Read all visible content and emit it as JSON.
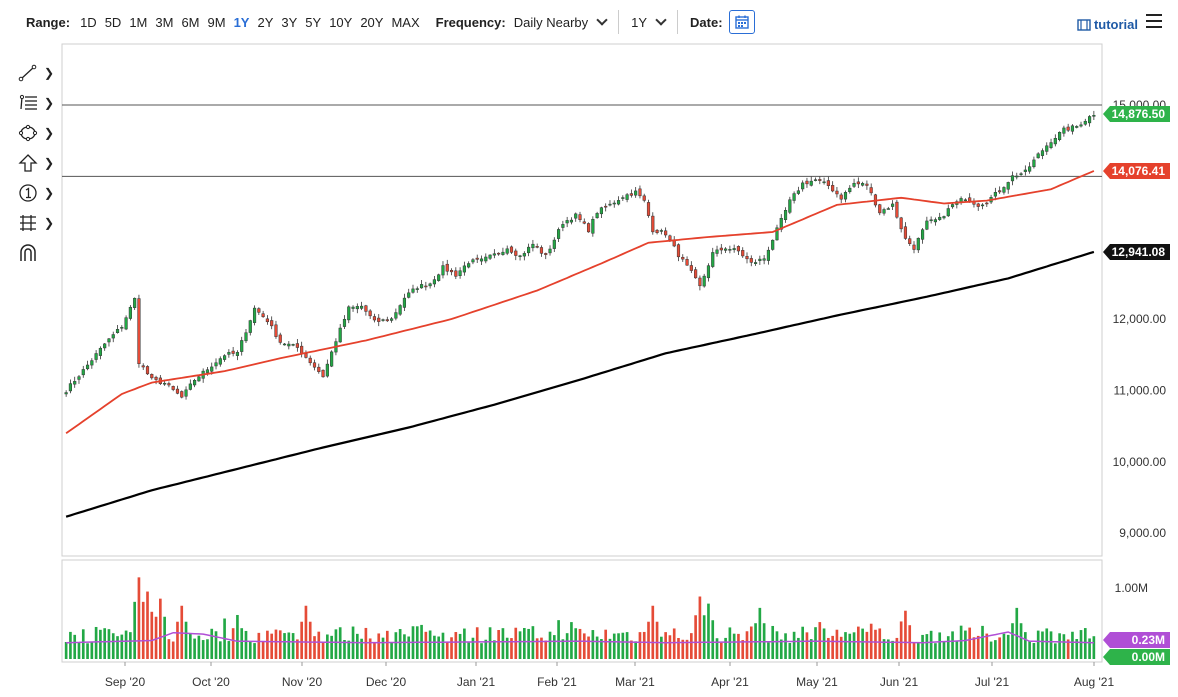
{
  "toolbar": {
    "range_label": "Range:",
    "ranges": [
      "1D",
      "5D",
      "1M",
      "3M",
      "6M",
      "9M",
      "1Y",
      "2Y",
      "3Y",
      "5Y",
      "10Y",
      "20Y",
      "MAX"
    ],
    "active_range": "1Y",
    "frequency_label": "Frequency:",
    "frequency_value": "Daily Nearby",
    "period_value": "1Y",
    "date_label": "Date:",
    "tutorial_label": "tutorial"
  },
  "drawing_tools": [
    "line-tool-icon",
    "fib-tool-icon",
    "shape-tool-icon",
    "arrow-up-tool-icon",
    "number-marker-tool-icon",
    "measure-tool-icon",
    "magnet-tool-icon"
  ],
  "colors": {
    "up": "#22a845",
    "down": "#e54b37",
    "ma50": "#e5412c",
    "ma200": "#000000",
    "price_badge": "#2eb34a",
    "ma50_badge": "#e5412c",
    "ma200_badge": "#111111",
    "vol_ma": "#b04fd6",
    "accent": "#2a6ed6"
  },
  "chart_data": {
    "type": "candlestick",
    "x_axis_labels": [
      "Sep '20",
      "Oct '20",
      "Nov '20",
      "Dec '20",
      "Jan '21",
      "Feb '21",
      "Mar '21",
      "Apr '21",
      "May '21",
      "Jun '21",
      "Jul '21",
      "Aug '21"
    ],
    "price_axis_labels": [
      "15,000.00",
      "12,000.00",
      "11,000.00",
      "10,000.00",
      "9,000.00"
    ],
    "price_ylim": [
      8800,
      15150
    ],
    "horizontal_lines": [
      15000,
      14000
    ],
    "last_price": "14,876.50",
    "ma50_value": "14,076.41",
    "ma200_value": "12,941.08",
    "close_path": [
      [
        0,
        11000
      ],
      [
        4,
        11280
      ],
      [
        9,
        11650
      ],
      [
        13,
        11900
      ],
      [
        16,
        12280
      ],
      [
        17,
        11400
      ],
      [
        20,
        11150
      ],
      [
        23,
        11100
      ],
      [
        27,
        10900
      ],
      [
        30,
        11150
      ],
      [
        33,
        11300
      ],
      [
        37,
        11500
      ],
      [
        40,
        11520
      ],
      [
        44,
        12150
      ],
      [
        47,
        11980
      ],
      [
        50,
        11680
      ],
      [
        54,
        11600
      ],
      [
        57,
        11400
      ],
      [
        60,
        11200
      ],
      [
        63,
        11700
      ],
      [
        66,
        12150
      ],
      [
        69,
        12180
      ],
      [
        72,
        11960
      ],
      [
        76,
        12000
      ],
      [
        79,
        12300
      ],
      [
        82,
        12450
      ],
      [
        85,
        12500
      ],
      [
        88,
        12720
      ],
      [
        91,
        12620
      ],
      [
        94,
        12800
      ],
      [
        97,
        12820
      ],
      [
        100,
        12900
      ],
      [
        103,
        13000
      ],
      [
        106,
        12880
      ],
      [
        109,
        13050
      ],
      [
        112,
        12880
      ],
      [
        116,
        13350
      ],
      [
        119,
        13450
      ],
      [
        122,
        13250
      ],
      [
        124,
        13500
      ],
      [
        127,
        13600
      ],
      [
        130,
        13720
      ],
      [
        133,
        13780
      ],
      [
        135,
        13650
      ],
      [
        137,
        13250
      ],
      [
        140,
        13200
      ],
      [
        143,
        12900
      ],
      [
        146,
        12650
      ],
      [
        148,
        12450
      ],
      [
        151,
        12920
      ],
      [
        154,
        13000
      ],
      [
        157,
        12950
      ],
      [
        160,
        12780
      ],
      [
        163,
        12850
      ],
      [
        166,
        13250
      ],
      [
        169,
        13650
      ],
      [
        172,
        13900
      ],
      [
        175,
        13950
      ],
      [
        178,
        13870
      ],
      [
        181,
        13700
      ],
      [
        184,
        13900
      ],
      [
        187,
        13880
      ],
      [
        190,
        13500
      ],
      [
        193,
        13600
      ],
      [
        196,
        13120
      ],
      [
        198,
        13000
      ],
      [
        201,
        13350
      ],
      [
        204,
        13400
      ],
      [
        207,
        13600
      ],
      [
        210,
        13700
      ],
      [
        213,
        13600
      ],
      [
        215,
        13650
      ],
      [
        218,
        13800
      ],
      [
        221,
        14000
      ],
      [
        224,
        14060
      ],
      [
        227,
        14300
      ],
      [
        230,
        14500
      ],
      [
        233,
        14650
      ],
      [
        236,
        14700
      ],
      [
        238,
        14790
      ],
      [
        240,
        14876
      ]
    ],
    "ma50_path": [
      [
        0,
        10400
      ],
      [
        13,
        10950
      ],
      [
        20,
        11110
      ],
      [
        37,
        11270
      ],
      [
        50,
        11450
      ],
      [
        70,
        11700
      ],
      [
        90,
        12000
      ],
      [
        110,
        12400
      ],
      [
        125,
        12780
      ],
      [
        136,
        13070
      ],
      [
        150,
        13150
      ],
      [
        165,
        13220
      ],
      [
        180,
        13600
      ],
      [
        195,
        13700
      ],
      [
        205,
        13620
      ],
      [
        215,
        13660
      ],
      [
        230,
        13820
      ],
      [
        240,
        14076
      ]
    ],
    "ma200_path": [
      [
        0,
        9230
      ],
      [
        20,
        9600
      ],
      [
        40,
        9900
      ],
      [
        60,
        10200
      ],
      [
        80,
        10480
      ],
      [
        100,
        10800
      ],
      [
        120,
        11150
      ],
      [
        140,
        11520
      ],
      [
        160,
        11780
      ],
      [
        180,
        12050
      ],
      [
        200,
        12300
      ],
      [
        220,
        12570
      ],
      [
        240,
        12941
      ]
    ],
    "volume_axis_labels": [
      "1.00M"
    ],
    "volume_ylim": [
      0,
      1.25
    ],
    "volume_ma_value": "0.23M",
    "open_interest_value": "0.00M",
    "volume_spikes": [
      [
        17,
        1.15
      ],
      [
        19,
        0.95
      ],
      [
        22,
        0.85
      ],
      [
        27,
        0.75
      ],
      [
        40,
        0.62
      ],
      [
        56,
        0.75
      ],
      [
        83,
        0.48
      ],
      [
        118,
        0.52
      ],
      [
        137,
        0.75
      ],
      [
        148,
        0.88
      ],
      [
        150,
        0.78
      ],
      [
        162,
        0.72
      ],
      [
        176,
        0.52
      ],
      [
        196,
        0.68
      ],
      [
        222,
        0.72
      ]
    ],
    "volume_ma_path": [
      [
        0,
        0.23
      ],
      [
        20,
        0.26
      ],
      [
        25,
        0.37
      ],
      [
        32,
        0.35
      ],
      [
        40,
        0.25
      ],
      [
        70,
        0.23
      ],
      [
        120,
        0.25
      ],
      [
        140,
        0.23
      ],
      [
        175,
        0.25
      ],
      [
        200,
        0.23
      ],
      [
        210,
        0.26
      ],
      [
        220,
        0.38
      ],
      [
        225,
        0.25
      ],
      [
        240,
        0.23
      ]
    ]
  }
}
